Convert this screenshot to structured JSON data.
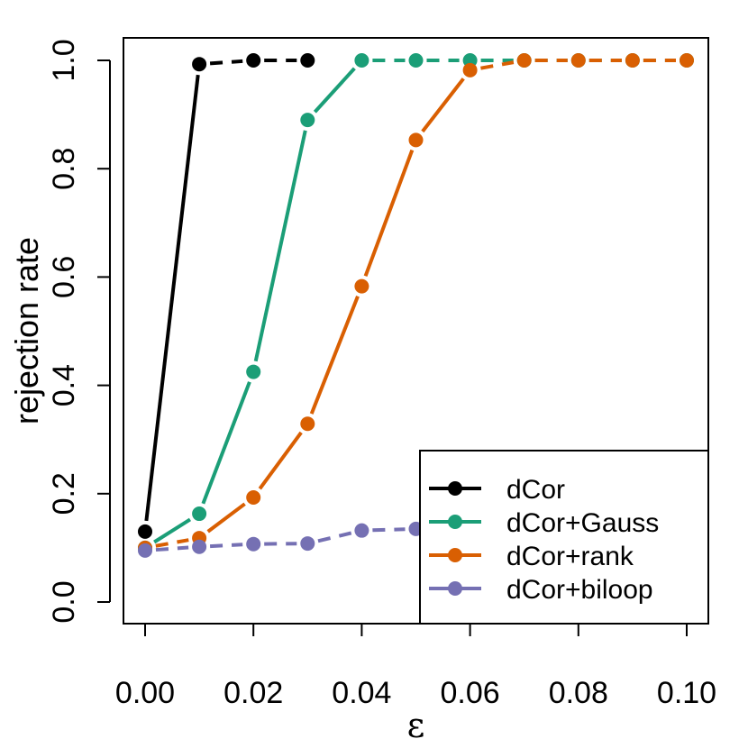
{
  "chart_data": {
    "type": "line",
    "title": "",
    "xlabel": "ε",
    "ylabel": "rejection rate",
    "xlim": [
      0.0,
      0.1
    ],
    "ylim": [
      0.0,
      1.0
    ],
    "x_ticks": [
      "0.00",
      "0.02",
      "0.04",
      "0.06",
      "0.08",
      "0.10"
    ],
    "x_tick_values": [
      0.0,
      0.02,
      0.04,
      0.06,
      0.08,
      0.1
    ],
    "y_ticks": [
      "0.0",
      "0.2",
      "0.4",
      "0.6",
      "0.8",
      "1.0"
    ],
    "y_tick_values": [
      0.0,
      0.2,
      0.4,
      0.6,
      0.8,
      1.0
    ],
    "legend_position": "bottom-right",
    "series": [
      {
        "name": "dCor",
        "color": "#000000",
        "x": [
          0.0,
          0.01,
          0.02,
          0.03
        ],
        "values": [
          0.13,
          0.993,
          1.0,
          1.0
        ]
      },
      {
        "name": "dCor+Gauss",
        "color": "#1b9e77",
        "x": [
          0.0,
          0.01,
          0.02,
          0.03,
          0.04,
          0.05,
          0.06,
          0.07,
          0.08,
          0.09,
          0.1
        ],
        "values": [
          0.1,
          0.163,
          0.425,
          0.89,
          1.0,
          1.0,
          1.0,
          1.0,
          1.0,
          1.0,
          1.0
        ]
      },
      {
        "name": "dCor+rank",
        "color": "#d95f02",
        "x": [
          0.0,
          0.01,
          0.02,
          0.03,
          0.04,
          0.05,
          0.06,
          0.07,
          0.08,
          0.09,
          0.1
        ],
        "values": [
          0.1,
          0.118,
          0.193,
          0.329,
          0.583,
          0.853,
          0.982,
          1.0,
          1.0,
          1.0,
          1.0
        ]
      },
      {
        "name": "dCor+biloop",
        "color": "#7570b3",
        "x": [
          0.0,
          0.01,
          0.02,
          0.03,
          0.04,
          0.05
        ],
        "values": [
          0.095,
          0.102,
          0.107,
          0.108,
          0.132,
          0.135
        ]
      }
    ]
  }
}
